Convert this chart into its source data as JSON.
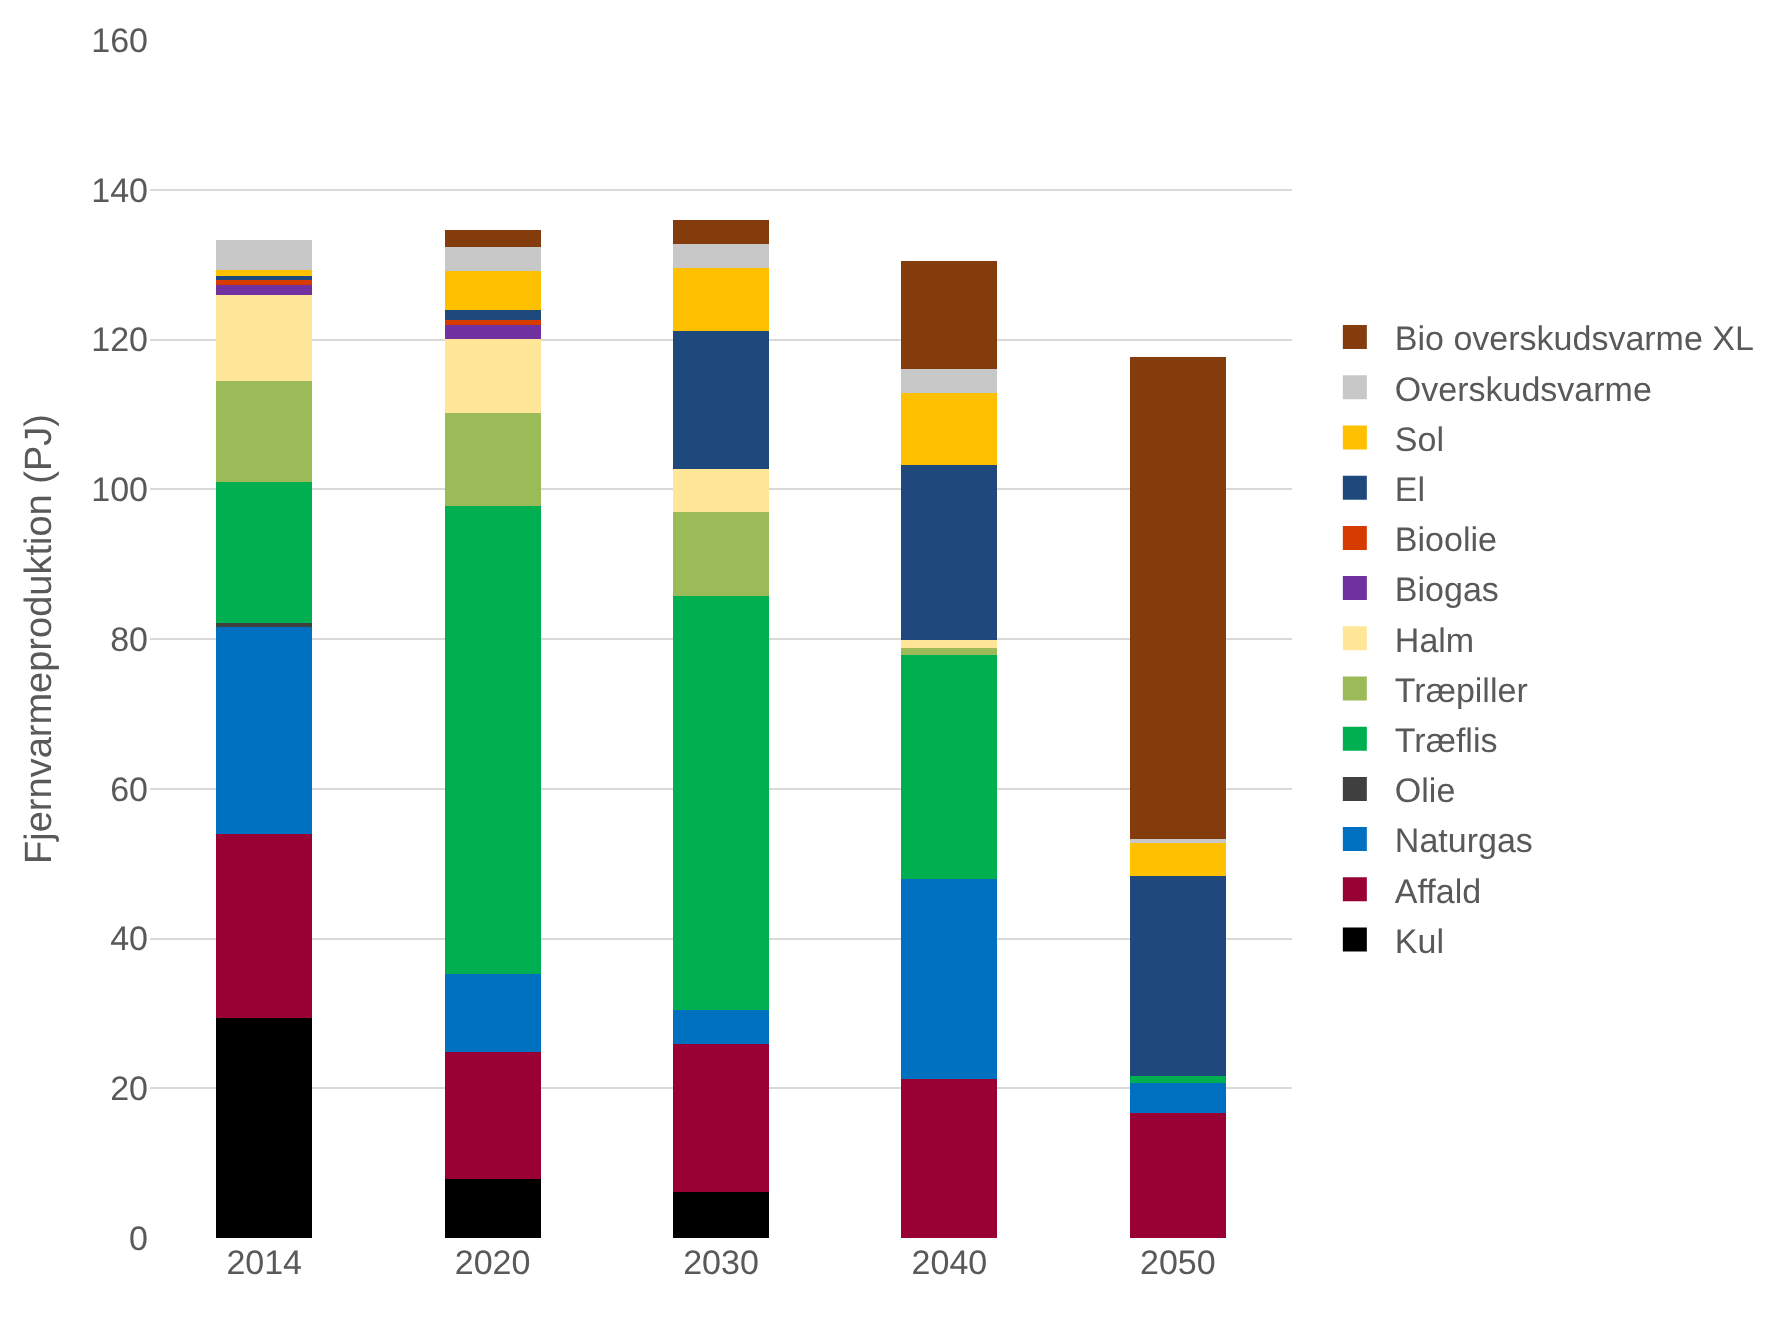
{
  "chart_data": {
    "type": "bar",
    "stacked": true,
    "ylabel": "Fjernvarmeproduktion (PJ)",
    "categories": [
      "2014",
      "2020",
      "2030",
      "2040",
      "2050"
    ],
    "ylim": [
      0,
      160
    ],
    "yticks": [
      0,
      20,
      40,
      60,
      80,
      100,
      120,
      140,
      160
    ],
    "grid": "y",
    "legend": "right",
    "series": [
      {
        "name": "Kul",
        "color": "#000000",
        "values": [
          29.4,
          7.9,
          6.1,
          0,
          0
        ]
      },
      {
        "name": "Affald",
        "color": "#990033",
        "values": [
          24.5,
          16.9,
          19.8,
          21.2,
          16.7
        ]
      },
      {
        "name": "Naturgas",
        "color": "#0070c0",
        "values": [
          27.7,
          10.4,
          4.6,
          26.7,
          4.0
        ]
      },
      {
        "name": "Olie",
        "color": "#404040",
        "values": [
          0.6,
          0,
          0,
          0,
          0
        ]
      },
      {
        "name": "Træflis",
        "color": "#00b050",
        "values": [
          18.8,
          62.5,
          55.2,
          30.0,
          1.0
        ]
      },
      {
        "name": "Træpiller",
        "color": "#9bbb59",
        "values": [
          13.5,
          12.5,
          11.2,
          0.9,
          0
        ]
      },
      {
        "name": "Halm",
        "color": "#ffe699",
        "values": [
          11.4,
          9.9,
          5.8,
          1.1,
          0
        ]
      },
      {
        "name": "Biogas",
        "color": "#7030a0",
        "values": [
          1.4,
          1.8,
          0,
          0,
          0
        ]
      },
      {
        "name": "Bioolie",
        "color": "#d73b00",
        "values": [
          0.7,
          0.7,
          0,
          0,
          0
        ]
      },
      {
        "name": "El",
        "color": "#1f497d",
        "values": [
          0.5,
          1.3,
          18.5,
          23.4,
          26.6
        ]
      },
      {
        "name": "Sol",
        "color": "#ffc000",
        "values": [
          0.8,
          5.3,
          8.4,
          9.5,
          4.4
        ]
      },
      {
        "name": "Overskudsvarme",
        "color": "#c8c8c8",
        "values": [
          4.0,
          3.1,
          3.2,
          3.3,
          0.6
        ]
      },
      {
        "name": "Bio overskudsvarme XL",
        "color": "#843c0c",
        "values": [
          0,
          2.3,
          3.2,
          14.4,
          64.3
        ]
      }
    ]
  }
}
